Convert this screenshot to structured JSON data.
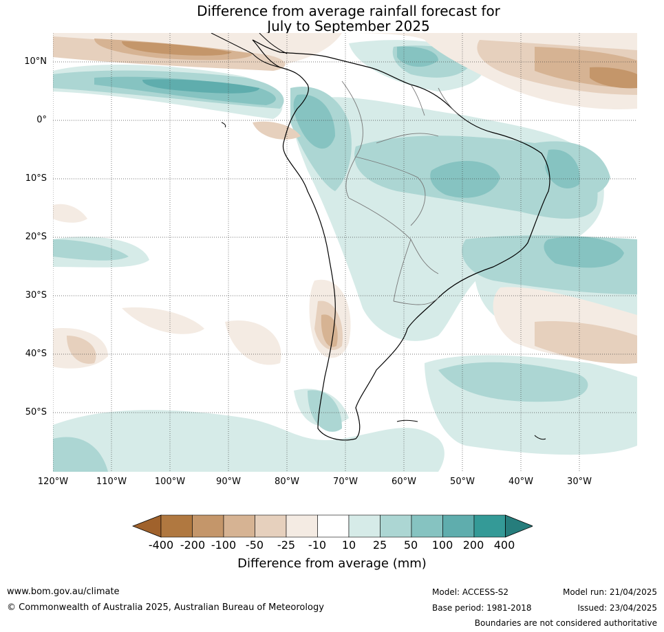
{
  "title": {
    "line1": "Difference from average rainfall forecast for",
    "line2": "July to September 2025"
  },
  "map": {
    "lat_labels": [
      "10°N",
      "0°",
      "10°S",
      "20°S",
      "30°S",
      "40°S",
      "50°S"
    ],
    "lon_labels": [
      "120°W",
      "110°W",
      "100°W",
      "90°W",
      "80°W",
      "70°W",
      "60°W",
      "50°W",
      "40°W",
      "30°W"
    ]
  },
  "colorbar": {
    "ticks": [
      "-400",
      "-200",
      "-100",
      "-50",
      "-25",
      "-10",
      "10",
      "25",
      "50",
      "100",
      "200",
      "400"
    ],
    "colors": [
      "#a0622c",
      "#b07840",
      "#c4966a",
      "#d6b393",
      "#e6d0bd",
      "#f4ebe3",
      "#ffffff",
      "#d6ebe8",
      "#acd6d3",
      "#86c3c1",
      "#5fadad",
      "#349a97",
      "#267d7c"
    ],
    "label": "Difference from average (mm)"
  },
  "footer": {
    "site": "www.bom.gov.au/climate",
    "copyright": "© Commonwealth of Australia 2025, Australian Bureau of Meteorology",
    "model": "Model: ACCESS-S2",
    "model_run": "Model run: 21/04/2025",
    "base_period": "Base period: 1981-2018",
    "issued": "Issued: 23/04/2025",
    "boundaries_note": "Boundaries are not considered authoritative"
  }
}
